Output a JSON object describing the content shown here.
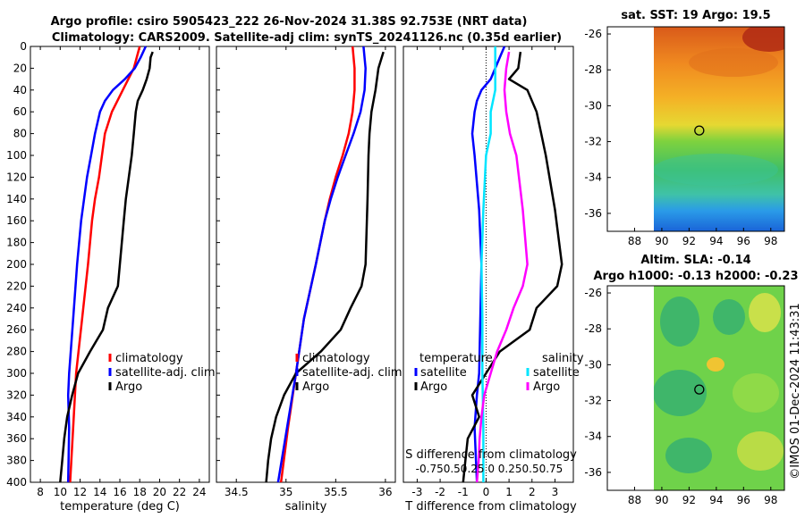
{
  "figure": {
    "title_line1": "Argo profile: csiro 5905423_222 26-Nov-2024 31.38S 92.753E (NRT data)",
    "title_line2": "Climatology: CARS2009. Satellite-adj clim: synTS_20241126.nc (0.35d earlier)",
    "stamp": "©IMOS 01-Dec-2024 11:43:31"
  },
  "colors": {
    "climatology": "#ff0000",
    "satellite": "#0000ff",
    "argo": "#000000",
    "sat_salinity": "#00e5ff",
    "argo_salinity": "#ff00ff"
  },
  "chart_data": [
    {
      "type": "line",
      "id": "temperature",
      "xlabel": "temperature (deg C)",
      "ylabel": "",
      "xlim": [
        7,
        25
      ],
      "ylim": [
        400,
        0
      ],
      "xticks": [
        "8",
        "10",
        "12",
        "14",
        "16",
        "18",
        "20",
        "22",
        "24"
      ],
      "yticks": [
        "0",
        "20",
        "40",
        "60",
        "80",
        "100",
        "120",
        "140",
        "160",
        "180",
        "200",
        "220",
        "240",
        "260",
        "280",
        "300",
        "320",
        "340",
        "360",
        "380",
        "400"
      ],
      "legend": [
        "climatology",
        "satellite-adj. clim",
        "Argo"
      ],
      "series": [
        {
          "name": "climatology",
          "color": "#ff0000",
          "depth": [
            0,
            20,
            40,
            60,
            80,
            100,
            120,
            140,
            160,
            200,
            250,
            300,
            350,
            400
          ],
          "values": [
            18.0,
            17.4,
            16.3,
            15.2,
            14.5,
            14.2,
            13.9,
            13.5,
            13.2,
            12.8,
            12.2,
            11.6,
            11.3,
            11.0
          ]
        },
        {
          "name": "satellite-adj. clim",
          "color": "#0000ff",
          "depth": [
            0,
            10,
            20,
            30,
            40,
            50,
            60,
            80,
            100,
            120,
            140,
            160,
            200,
            250,
            300,
            320,
            350,
            400
          ],
          "values": [
            18.6,
            18.1,
            17.5,
            16.5,
            15.3,
            14.5,
            14.0,
            13.5,
            13.1,
            12.7,
            12.4,
            12.1,
            11.7,
            11.3,
            10.9,
            10.8,
            10.9,
            10.8
          ]
        },
        {
          "name": "Argo",
          "color": "#000000",
          "depth": [
            5,
            10,
            20,
            30,
            40,
            50,
            60,
            80,
            100,
            120,
            140,
            160,
            180,
            200,
            220,
            240,
            260,
            280,
            300,
            320,
            340,
            360,
            380,
            400
          ],
          "values": [
            19.3,
            19.1,
            19.0,
            18.7,
            18.3,
            17.8,
            17.6,
            17.4,
            17.2,
            16.9,
            16.6,
            16.4,
            16.2,
            16.0,
            15.8,
            14.8,
            14.3,
            13.0,
            11.8,
            11.2,
            10.7,
            10.4,
            10.2,
            10.0
          ]
        }
      ]
    },
    {
      "type": "line",
      "id": "salinity",
      "xlabel": "salinity",
      "ylabel": "",
      "xlim": [
        34.3,
        36.1
      ],
      "ylim": [
        400,
        0
      ],
      "xticks": [
        "34.5",
        "35",
        "35.5",
        "36"
      ],
      "legend": [
        "climatology",
        "satellite-adj. clim",
        "Argo"
      ],
      "series": [
        {
          "name": "climatology",
          "color": "#ff0000",
          "depth": [
            0,
            20,
            40,
            60,
            80,
            100,
            120,
            140,
            160,
            200,
            250,
            300,
            350,
            400
          ],
          "values": [
            35.67,
            35.69,
            35.69,
            35.67,
            35.63,
            35.57,
            35.5,
            35.44,
            35.39,
            35.3,
            35.18,
            35.1,
            35.02,
            34.95
          ]
        },
        {
          "name": "satellite-adj. clim",
          "color": "#0000ff",
          "depth": [
            0,
            20,
            40,
            60,
            80,
            100,
            120,
            140,
            160,
            200,
            250,
            300,
            350,
            400
          ],
          "values": [
            35.78,
            35.8,
            35.79,
            35.75,
            35.68,
            35.6,
            35.52,
            35.45,
            35.39,
            35.3,
            35.18,
            35.1,
            35.01,
            34.92
          ]
        },
        {
          "name": "Argo",
          "color": "#000000",
          "depth": [
            5,
            20,
            40,
            60,
            80,
            100,
            140,
            200,
            220,
            240,
            260,
            280,
            300,
            320,
            340,
            360,
            380,
            400
          ],
          "values": [
            35.98,
            35.93,
            35.9,
            35.86,
            35.84,
            35.83,
            35.82,
            35.8,
            35.76,
            35.65,
            35.55,
            35.35,
            35.1,
            34.98,
            34.9,
            34.85,
            34.82,
            34.8
          ]
        }
      ]
    },
    {
      "type": "line",
      "id": "difference",
      "xlabel": "T difference from climatology",
      "xlabel_top": "S difference from climatology",
      "ylabel": "",
      "xlim": [
        -3.6,
        3.8
      ],
      "ylim": [
        400,
        0
      ],
      "xticks": [
        "-3",
        "-2",
        "-1",
        "0",
        "1",
        "2",
        "3"
      ],
      "xticks_top": "-0.750.50.25 0  0.250.50.75",
      "legend_left_title": "temperature",
      "legend_right_title": "salinity",
      "legend_left": [
        "satellite",
        "Argo"
      ],
      "legend_right": [
        "satellite",
        "Argo"
      ],
      "series": [
        {
          "name": "T satellite",
          "color": "#0000ff",
          "depth": [
            0,
            10,
            20,
            30,
            40,
            50,
            60,
            80,
            100,
            150,
            200,
            250,
            300,
            320,
            350,
            400
          ],
          "values": [
            0.8,
            0.6,
            0.4,
            0.2,
            -0.2,
            -0.4,
            -0.5,
            -0.6,
            -0.5,
            -0.3,
            -0.2,
            -0.25,
            -0.3,
            -0.4,
            -0.5,
            -0.4
          ]
        },
        {
          "name": "T Argo",
          "color": "#000000",
          "depth": [
            5,
            20,
            30,
            40,
            60,
            80,
            100,
            150,
            200,
            220,
            240,
            260,
            280,
            300,
            320,
            340,
            360,
            380,
            400
          ],
          "values": [
            1.5,
            1.4,
            1.0,
            1.8,
            2.2,
            2.4,
            2.6,
            3.0,
            3.3,
            3.1,
            2.2,
            1.9,
            0.6,
            0.0,
            -0.6,
            -0.3,
            -0.8,
            -0.9,
            -1.0
          ]
        },
        {
          "name": "S satellite",
          "color": "#00e5ff",
          "depth": [
            0,
            20,
            40,
            60,
            80,
            100,
            150,
            200,
            250,
            300,
            350,
            400
          ],
          "values": [
            0.1,
            0.1,
            0.1,
            0.05,
            0.05,
            0.0,
            -0.03,
            -0.05,
            -0.04,
            -0.04,
            -0.03,
            -0.03
          ]
        },
        {
          "name": "S Argo",
          "color": "#ff00ff",
          "depth": [
            5,
            20,
            40,
            60,
            80,
            100,
            150,
            200,
            220,
            240,
            260,
            280,
            300,
            320,
            340,
            360,
            380,
            400
          ],
          "values": [
            0.25,
            0.22,
            0.2,
            0.22,
            0.26,
            0.33,
            0.4,
            0.45,
            0.4,
            0.3,
            0.22,
            0.12,
            0.05,
            -0.02,
            -0.05,
            -0.07,
            -0.08,
            -0.1
          ]
        }
      ]
    },
    {
      "type": "heatmap",
      "id": "sst_map",
      "title": "sat. SST: 19 Argo: 19.5",
      "xlim": [
        86,
        99
      ],
      "ylim": [
        -37,
        -25.6
      ],
      "xticks": [
        "88",
        "90",
        "92",
        "94",
        "96",
        "98"
      ],
      "yticks": [
        "-26",
        "-28",
        "-30",
        "-32",
        "-34",
        "-36"
      ],
      "marker": {
        "lon": 92.75,
        "lat": -31.38
      }
    },
    {
      "type": "heatmap",
      "id": "sla_map",
      "title_line1": "Altim. SLA: -0.14",
      "title_line2": "Argo h1000: -0.13 h2000: -0.23",
      "xlim": [
        86,
        99
      ],
      "ylim": [
        -37,
        -25.6
      ],
      "xticks": [
        "88",
        "90",
        "92",
        "94",
        "96",
        "98"
      ],
      "yticks": [
        "-26",
        "-28",
        "-30",
        "-32",
        "-34",
        "-36"
      ],
      "marker": {
        "lon": 92.75,
        "lat": -31.38
      }
    }
  ]
}
